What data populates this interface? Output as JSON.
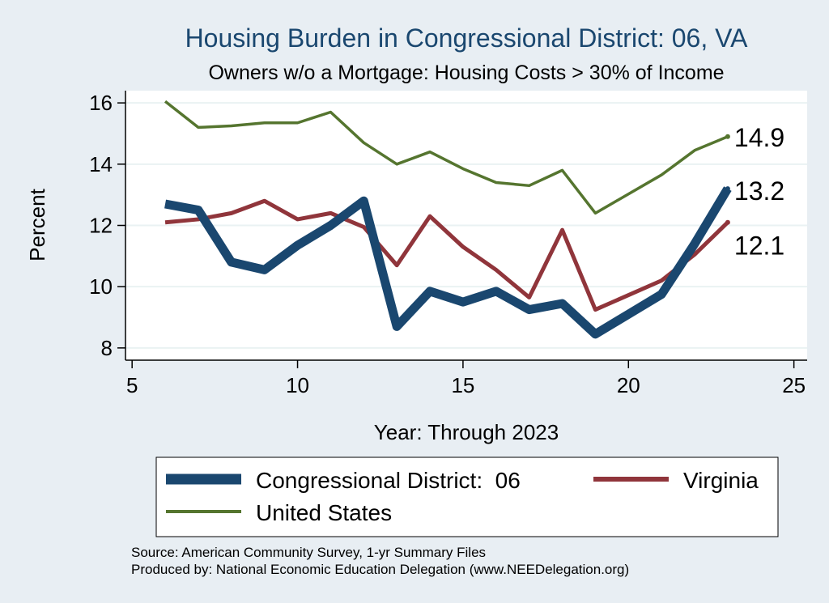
{
  "chart_data": {
    "type": "line",
    "title": "Housing Burden in Congressional District:  06, VA",
    "subtitle": "Owners w/o a Mortgage: Housing Costs > 30% of Income",
    "xlabel": "Year: Through 2023",
    "ylabel": "Percent",
    "xlim": [
      4.8,
      25.4
    ],
    "ylim": [
      7.6,
      16.4
    ],
    "xticks": [
      5,
      10,
      15,
      20,
      25
    ],
    "yticks": [
      8,
      10,
      12,
      14,
      16
    ],
    "grid": "horizontal",
    "legend_position": "bottom",
    "series": [
      {
        "name": "Congressional District:  06",
        "color": "#1a476f",
        "x": [
          6,
          7,
          8,
          9,
          10,
          11,
          12,
          13,
          14,
          15,
          16,
          17,
          18,
          19,
          21,
          22,
          23
        ],
        "values": [
          12.7,
          12.5,
          10.8,
          10.55,
          11.35,
          12.0,
          12.8,
          8.7,
          9.85,
          9.5,
          9.85,
          9.25,
          9.45,
          8.45,
          9.75,
          11.4,
          13.2
        ],
        "end_label": "13.2"
      },
      {
        "name": "Virginia",
        "color": "#90353b",
        "x": [
          6,
          7,
          8,
          9,
          10,
          11,
          12,
          13,
          14,
          15,
          16,
          17,
          18,
          19,
          21,
          22,
          23
        ],
        "values": [
          12.1,
          12.2,
          12.4,
          12.8,
          12.2,
          12.4,
          11.95,
          10.7,
          12.3,
          11.3,
          10.55,
          9.65,
          11.85,
          9.25,
          10.2,
          11.05,
          12.1
        ],
        "end_label": "12.1"
      },
      {
        "name": "United States",
        "color": "#55752f",
        "x": [
          6,
          7,
          8,
          9,
          10,
          11,
          12,
          13,
          14,
          15,
          16,
          17,
          18,
          19,
          21,
          22,
          23
        ],
        "values": [
          16.05,
          15.2,
          15.25,
          15.35,
          15.35,
          15.7,
          14.7,
          14.0,
          14.4,
          13.85,
          13.4,
          13.3,
          13.8,
          12.4,
          13.65,
          14.45,
          14.9
        ],
        "end_label": "14.9"
      }
    ],
    "notes": [
      "Source: American Community Survey, 1-yr Summary Files",
      "Produced by: National Economic Education Delegation (www.NEEDelegation.org)"
    ]
  }
}
